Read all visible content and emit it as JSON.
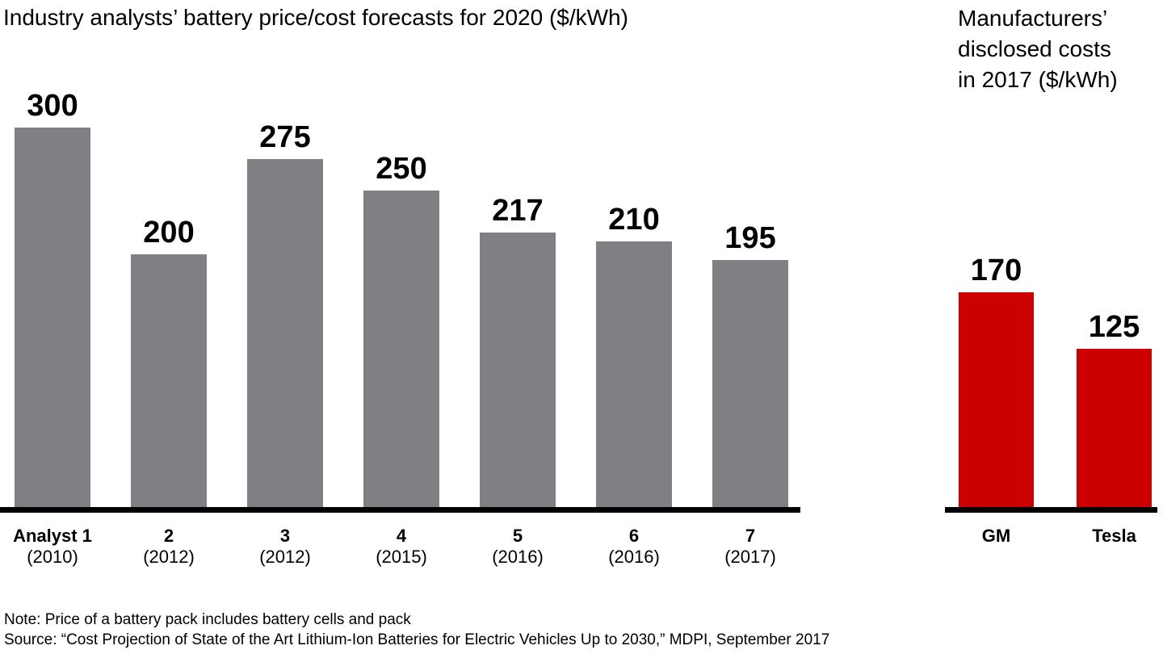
{
  "chart_data": [
    {
      "type": "bar",
      "title": "Industry analysts’ battery price/cost forecasts for 2020 ($/kWh)",
      "categories": [
        "Analyst 1",
        "2",
        "3",
        "4",
        "5",
        "6",
        "7"
      ],
      "category_years": [
        "(2010)",
        "(2012)",
        "(2012)",
        "(2015)",
        "(2016)",
        "(2016)",
        "(2017)"
      ],
      "values": [
        300,
        200,
        275,
        250,
        217,
        210,
        195
      ],
      "bar_color": "#7F8084",
      "axis_color": "#000000",
      "value_labels_shown": true,
      "ylim": [
        0,
        330
      ],
      "grid": false,
      "legend": "none"
    },
    {
      "type": "bar",
      "title": "Manufacturers’ disclosed costs in 2017 ($/kWh)",
      "title_lines": [
        "Manufacturers’",
        "disclosed costs",
        "in 2017 ($/kWh)"
      ],
      "categories": [
        "GM",
        "Tesla"
      ],
      "values": [
        170,
        125
      ],
      "bar_color": "#CC0000",
      "axis_color": "#000000",
      "value_labels_shown": true,
      "ylim": [
        0,
        330
      ],
      "grid": false,
      "legend": "none"
    }
  ],
  "footnotes": {
    "note": "Note: Price of a battery pack includes battery cells and pack",
    "source": "Source: “Cost Projection of State of the Art Lithium-Ion Batteries for Electric Vehicles Up to 2030,” MDPI, September 2017"
  }
}
